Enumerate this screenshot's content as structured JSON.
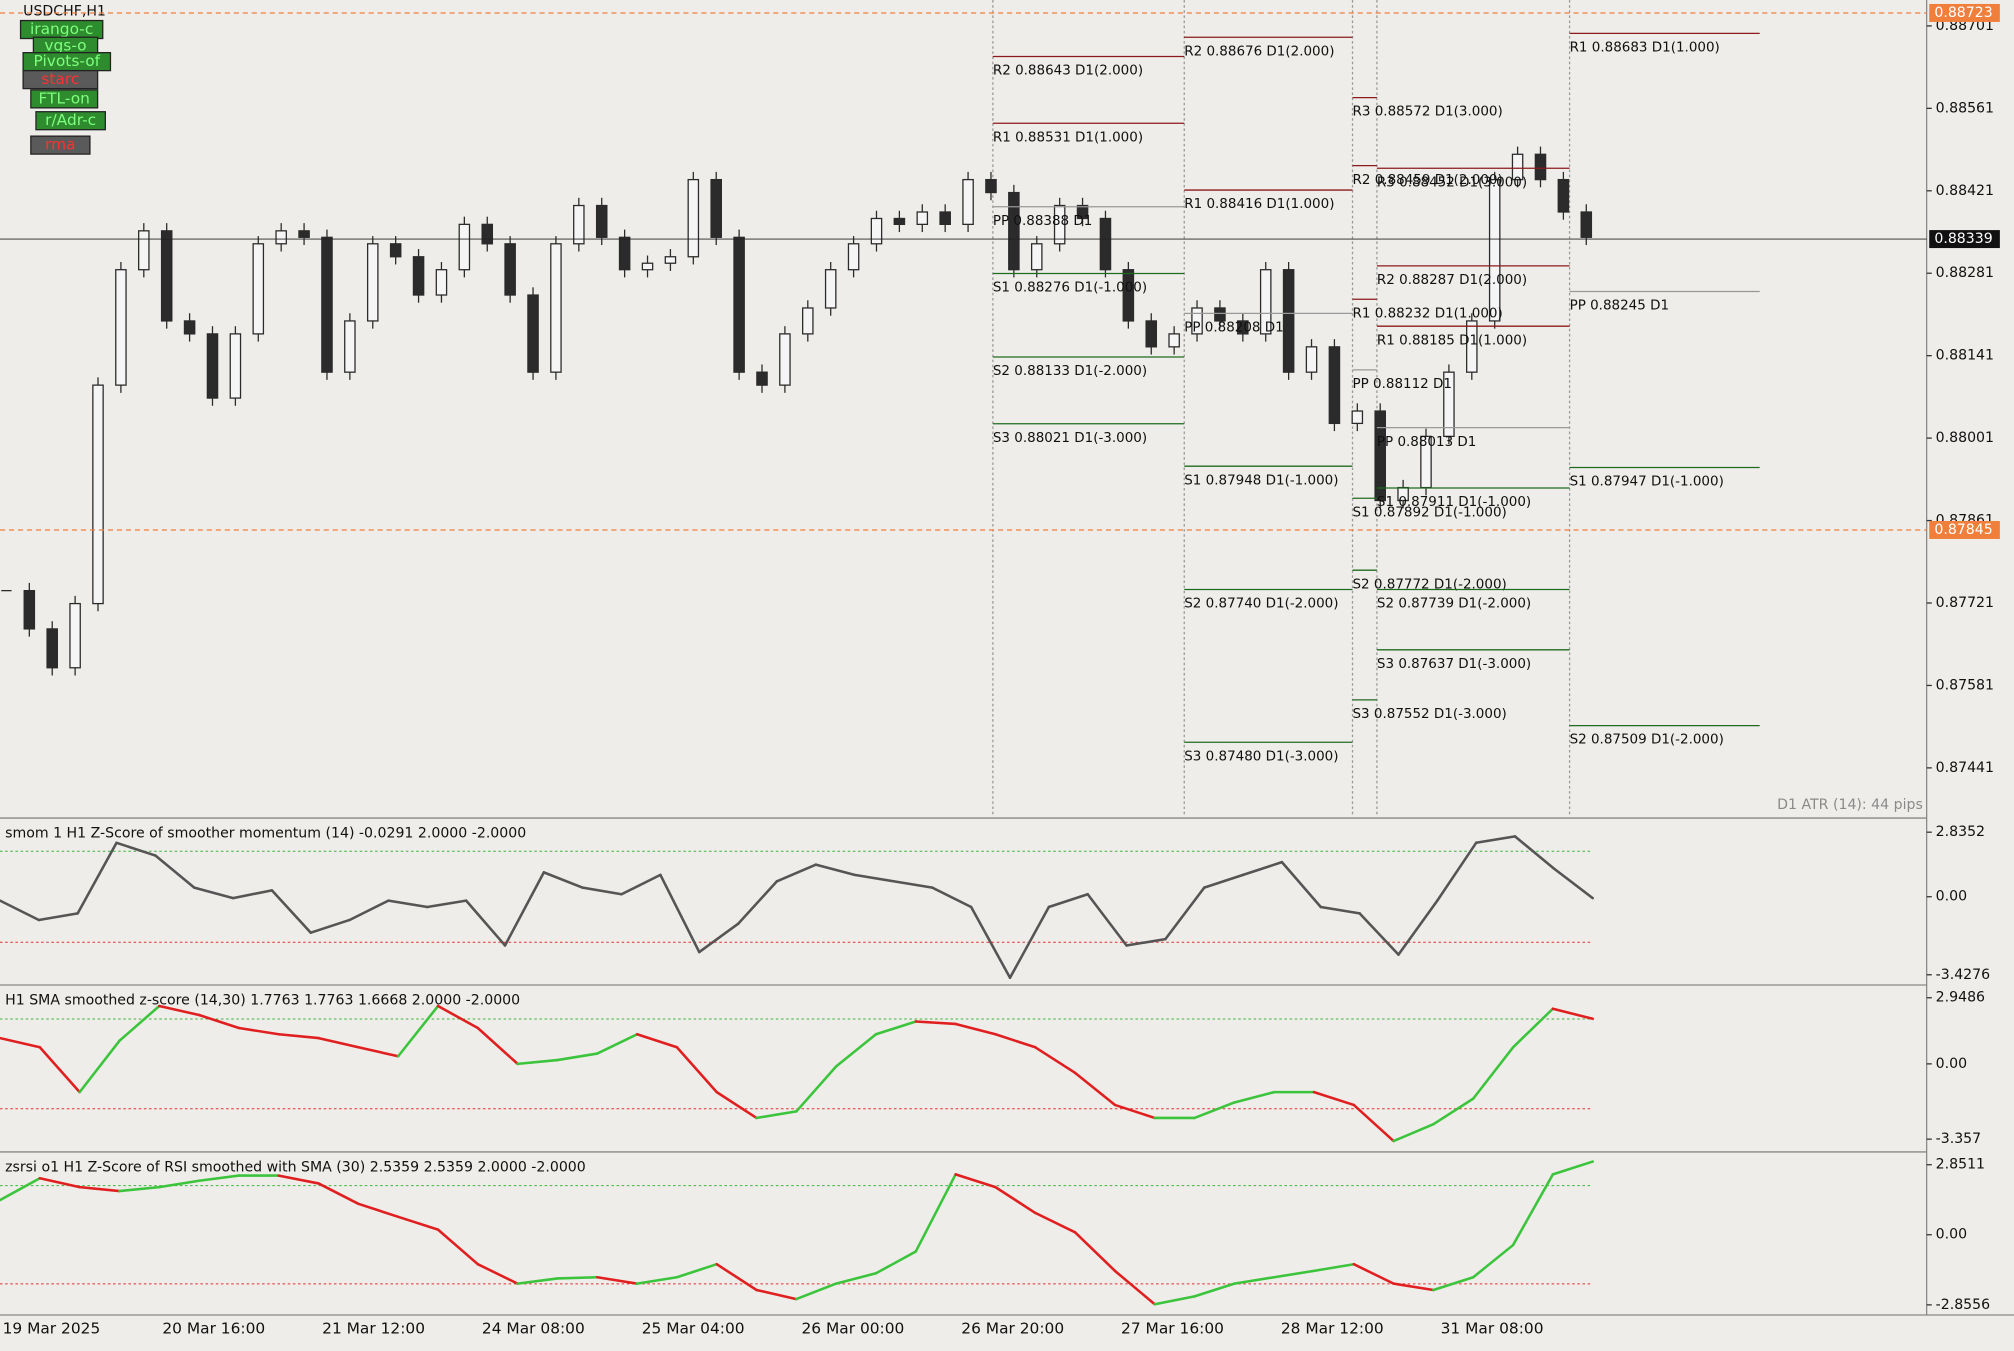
{
  "header": {
    "buttons": [
      "irango-c",
      "vgs-o",
      "Pivots-of",
      "starc",
      "FTL-on",
      "r/Adr-c",
      "rma"
    ]
  },
  "chart_data": [
    {
      "type": "candlestick",
      "title": "USDCHF,H1",
      "color": "#2b2b2b",
      "up_color": "#f5f5f5",
      "values": [
        0.87742,
        0.87677,
        0.87611,
        0.8772,
        0.88091,
        0.88287,
        0.88353,
        0.882,
        0.88178,
        0.88069,
        0.88178,
        0.88331,
        0.88353,
        0.88342,
        0.88113,
        0.882,
        0.88331,
        0.88309,
        0.88244,
        0.88287,
        0.88364,
        0.88331,
        0.88244,
        0.88113,
        0.88331,
        0.88396,
        0.88342,
        0.88287,
        0.88298,
        0.88309,
        0.8844,
        0.88342,
        0.88113,
        0.88091,
        0.88178,
        0.88222,
        0.88287,
        0.88331,
        0.88374,
        0.88364,
        0.88385,
        0.88364,
        0.8844,
        0.88418,
        0.88287,
        0.88331,
        0.88396,
        0.88374,
        0.88287,
        0.882,
        0.88156,
        0.88178,
        0.88222,
        0.882,
        0.88178,
        0.88287,
        0.88113,
        0.88156,
        0.88026,
        0.88047,
        0.87895,
        0.87917,
        0.88004,
        0.88113,
        0.882,
        0.8844,
        0.88483,
        0.8844,
        0.88385,
        0.88342
      ],
      "ylim": [
        0.87358,
        0.88745
      ],
      "yticks": [
        0.88701,
        0.88561,
        0.88421,
        0.88281,
        0.88141,
        0.88001,
        0.87861,
        0.87721,
        0.87581,
        0.87441
      ],
      "current_price": 0.88339,
      "alert_levels": [
        0.88723,
        0.87845
      ],
      "alert_color": "#f07f3c",
      "time_labels": [
        "19 Mar 2025",
        "20 Mar 16:00",
        "21 Mar 12:00",
        "24 Mar 08:00",
        "25 Mar 04:00",
        "26 Mar 00:00",
        "26 Mar 20:00",
        "27 Mar 16:00",
        "28 Mar 12:00",
        "31 Mar 08:00"
      ],
      "pivot_labels": [
        "R2 0.88643 D1(2.000)",
        "R1 0.88531 D1(1.000)",
        "PP 0.88388 D1",
        "S1 0.88276 D1(-1.000)",
        "S2 0.88133 D1(-2.000)",
        "S3 0.88021 D1(-3.000)",
        "R2 0.88676 D1(2.000)",
        "R1 0.88416 D1(1.000)",
        "PP 0.88208 D1",
        "S1 0.87948 D1(-1.000)",
        "S2 0.87740 D1(-2.000)",
        "S3 0.87480 D1(-3.000)",
        "R3 0.88572 D1(3.000)",
        "R2 0.88459 D1(2.000)",
        "R3 0.88452 D1(3.000)",
        "R2 0.88287 D1(2.000)",
        "R1 0.88232 D1(1.000)",
        "R1 0.88185 D1(1.000)",
        "PP 0.88112 D1",
        "PP 0.88013 D1",
        "S1 0.87911 D1(-1.000)",
        "S1 0.87892 D1(-1.000)",
        "S2 0.87772 D1(-2.000)",
        "S2 0.87739 D1(-2.000)",
        "S3 0.87637 D1(-3.000)",
        "S3 0.87552 D1(-3.000)",
        "R1 0.88683 D1(1.000)",
        "PP 0.88245 D1",
        "S1 0.87947 D1(-1.000)",
        "S2 0.87509 D1(-2.000)"
      ],
      "note": "D1 ATR (14): 44 pips"
    },
    {
      "type": "line",
      "title": "smom 1 H1 Z-Score of smoother momentum (14) -0.0291 2.0000 -2.0000",
      "color": "#555555",
      "values": [
        -0.17,
        -1.02,
        -0.73,
        2.37,
        1.81,
        0.4,
        -0.06,
        0.28,
        -1.58,
        -1.02,
        -0.17,
        -0.45,
        -0.17,
        -2.14,
        1.07,
        0.4,
        0.11,
        0.96,
        -2.43,
        -1.19,
        0.68,
        1.41,
        0.96,
        0.68,
        0.4,
        -0.45,
        -3.56,
        -0.45,
        0.11,
        -2.14,
        -1.86,
        0.4,
        0.96,
        1.52,
        -0.45,
        -0.73,
        -2.54,
        -0.17,
        2.37,
        2.65,
        1.24,
        -0.06
      ],
      "ylim": [
        -3.82,
        3.4
      ],
      "yticks": [
        2.8352,
        {
          "value": 0,
          "label": "0.00"
        },
        -3.4276
      ],
      "levels": [
        2,
        -2
      ]
    },
    {
      "type": "line",
      "title": "H1 SMA smoothed z-score (14,30) 1.7763 1.7763 1.6668 2.0000 -2.0000",
      "up_color": "#3cc43c",
      "down_color": "#e02020",
      "values": [
        1.15,
        0.74,
        -1.26,
        1.03,
        2.58,
        2.18,
        1.6,
        1.32,
        1.15,
        0.74,
        0.34,
        2.58,
        1.6,
        0.0,
        0.17,
        0.46,
        1.32,
        0.74,
        -1.26,
        -2.41,
        -2.12,
        -0.11,
        1.32,
        1.89,
        1.78,
        1.32,
        0.74,
        -0.4,
        -1.83,
        -2.41,
        -2.41,
        -1.72,
        -1.26,
        -1.26,
        -1.83,
        -3.44,
        -2.69,
        -1.55,
        0.74,
        2.46,
        2.01
      ],
      "ylim": [
        -3.87,
        3.46
      ],
      "yticks": [
        2.9486,
        {
          "value": 0,
          "label": "0.00"
        },
        -3.357
      ],
      "levels": [
        2,
        -2
      ]
    },
    {
      "type": "line",
      "title": "zsrsi o1 H1 Z-Score of RSI smoothed with SMA (30) 2.5359 2.5359 2.0000 -2.0000",
      "up_color": "#3cc43c",
      "down_color": "#e02020",
      "values": [
        1.41,
        2.3,
        1.94,
        1.78,
        1.94,
        2.2,
        2.41,
        2.41,
        2.09,
        1.26,
        0.73,
        0.21,
        -1.2,
        -1.99,
        -1.78,
        -1.73,
        -1.99,
        -1.73,
        -1.2,
        -2.25,
        -2.62,
        -1.99,
        -1.57,
        -0.68,
        2.46,
        1.94,
        0.89,
        0.1,
        -1.47,
        -2.83,
        -2.51,
        -1.99,
        -1.73,
        -1.47,
        -1.2,
        -1.99,
        -2.25,
        -1.73,
        -0.42,
        2.46,
        2.98
      ],
      "ylim": [
        -3.27,
        3.32
      ],
      "yticks": [
        2.8511,
        {
          "value": 0,
          "label": "0.00"
        },
        -2.8556
      ],
      "levels": [
        2,
        -2
      ]
    }
  ]
}
